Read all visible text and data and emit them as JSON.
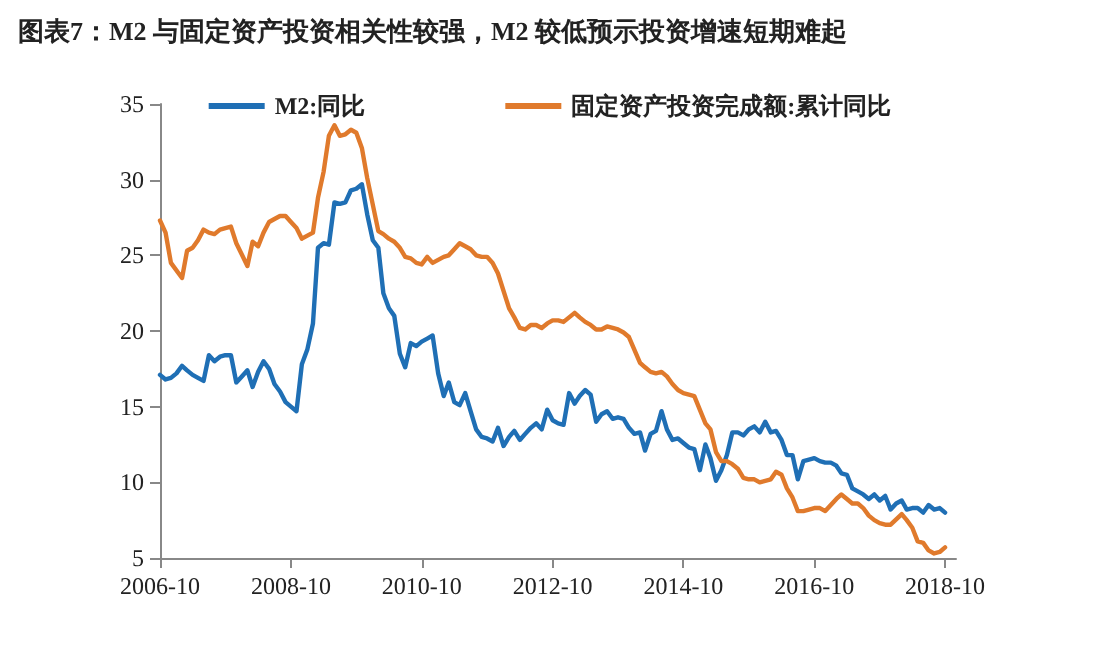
{
  "chart_data": {
    "type": "line",
    "title": "图表7：M2 与固定资产投资相关性较强，M2 较低预示投资增速短期难起",
    "x": [
      "2006-10",
      "2006-11",
      "2006-12",
      "2007-01",
      "2007-02",
      "2007-03",
      "2007-04",
      "2007-05",
      "2007-06",
      "2007-07",
      "2007-08",
      "2007-09",
      "2007-10",
      "2007-11",
      "2007-12",
      "2008-01",
      "2008-02",
      "2008-03",
      "2008-04",
      "2008-05",
      "2008-06",
      "2008-07",
      "2008-08",
      "2008-09",
      "2008-10",
      "2008-11",
      "2008-12",
      "2009-01",
      "2009-02",
      "2009-03",
      "2009-04",
      "2009-05",
      "2009-06",
      "2009-07",
      "2009-08",
      "2009-09",
      "2009-10",
      "2009-11",
      "2009-12",
      "2010-01",
      "2010-02",
      "2010-03",
      "2010-04",
      "2010-05",
      "2010-06",
      "2010-07",
      "2010-08",
      "2010-09",
      "2010-10",
      "2010-11",
      "2010-12",
      "2011-01",
      "2011-02",
      "2011-03",
      "2011-04",
      "2011-05",
      "2011-06",
      "2011-07",
      "2011-08",
      "2011-09",
      "2011-10",
      "2011-11",
      "2011-12",
      "2012-01",
      "2012-02",
      "2012-03",
      "2012-04",
      "2012-05",
      "2012-06",
      "2012-07",
      "2012-08",
      "2012-09",
      "2012-10",
      "2012-11",
      "2012-12",
      "2013-01",
      "2013-02",
      "2013-03",
      "2013-04",
      "2013-05",
      "2013-06",
      "2013-07",
      "2013-08",
      "2013-09",
      "2013-10",
      "2013-11",
      "2013-12",
      "2014-01",
      "2014-02",
      "2014-03",
      "2014-04",
      "2014-05",
      "2014-06",
      "2014-07",
      "2014-08",
      "2014-09",
      "2014-10",
      "2014-11",
      "2014-12",
      "2015-01",
      "2015-02",
      "2015-03",
      "2015-04",
      "2015-05",
      "2015-06",
      "2015-07",
      "2015-08",
      "2015-09",
      "2015-10",
      "2015-11",
      "2015-12",
      "2016-01",
      "2016-02",
      "2016-03",
      "2016-04",
      "2016-05",
      "2016-06",
      "2016-07",
      "2016-08",
      "2016-09",
      "2016-10",
      "2016-11",
      "2016-12",
      "2017-01",
      "2017-02",
      "2017-03",
      "2017-04",
      "2017-05",
      "2017-06",
      "2017-07",
      "2017-08",
      "2017-09",
      "2017-10",
      "2017-11",
      "2017-12",
      "2018-01",
      "2018-02",
      "2018-03",
      "2018-04",
      "2018-05",
      "2018-06",
      "2018-07",
      "2018-08",
      "2018-09",
      "2018-10"
    ],
    "series": [
      {
        "name": "M2:同比",
        "color": "#1f6fb5",
        "values": [
          17.1,
          16.8,
          16.9,
          17.2,
          17.7,
          17.4,
          17.1,
          16.9,
          16.7,
          18.4,
          18.0,
          18.3,
          18.4,
          18.4,
          16.6,
          17.0,
          17.4,
          16.3,
          17.3,
          18.0,
          17.5,
          16.5,
          16.0,
          15.3,
          15.0,
          14.7,
          17.8,
          18.8,
          20.5,
          25.5,
          25.8,
          25.7,
          28.5,
          28.4,
          28.5,
          29.3,
          29.4,
          29.7,
          27.7,
          26.0,
          25.5,
          22.5,
          21.5,
          21.0,
          18.5,
          17.6,
          19.2,
          19.0,
          19.3,
          19.5,
          19.7,
          17.2,
          15.7,
          16.6,
          15.3,
          15.1,
          15.9,
          14.7,
          13.5,
          13.0,
          12.9,
          12.7,
          13.6,
          12.4,
          13.0,
          13.4,
          12.8,
          13.2,
          13.6,
          13.9,
          13.5,
          14.8,
          14.1,
          13.9,
          13.8,
          15.9,
          15.2,
          15.7,
          16.1,
          15.8,
          14.0,
          14.5,
          14.7,
          14.2,
          14.3,
          14.2,
          13.6,
          13.2,
          13.3,
          12.1,
          13.2,
          13.4,
          14.7,
          13.5,
          12.8,
          12.9,
          12.6,
          12.3,
          12.2,
          10.8,
          12.5,
          11.6,
          10.1,
          10.8,
          11.8,
          13.3,
          13.3,
          13.1,
          13.5,
          13.7,
          13.3,
          14.0,
          13.3,
          13.4,
          12.8,
          11.8,
          11.8,
          10.2,
          11.4,
          11.5,
          11.6,
          11.4,
          11.3,
          11.3,
          11.1,
          10.6,
          10.5,
          9.6,
          9.4,
          9.2,
          8.9,
          9.2,
          8.8,
          9.1,
          8.2,
          8.6,
          8.8,
          8.2,
          8.3,
          8.3,
          8.0,
          8.5,
          8.2,
          8.3,
          8.0
        ]
      },
      {
        "name": "固定资产投资完成额:累计同比",
        "color": "#e07a2c",
        "values": [
          27.3,
          26.5,
          24.5,
          null,
          23.5,
          25.3,
          25.5,
          26.0,
          26.7,
          26.5,
          26.4,
          26.7,
          26.8,
          26.9,
          25.8,
          null,
          24.3,
          25.9,
          25.6,
          26.5,
          27.2,
          27.4,
          27.6,
          27.6,
          27.2,
          26.8,
          26.1,
          null,
          26.5,
          28.8,
          30.5,
          32.9,
          33.6,
          32.9,
          33.0,
          33.3,
          33.1,
          32.1,
          30.1,
          null,
          26.6,
          26.4,
          26.1,
          25.9,
          25.5,
          24.9,
          24.8,
          24.5,
          24.4,
          24.9,
          24.5,
          null,
          24.9,
          25.0,
          25.4,
          25.8,
          25.6,
          25.4,
          25.0,
          24.9,
          24.9,
          24.5,
          23.8,
          null,
          21.5,
          20.9,
          20.2,
          20.1,
          20.4,
          20.4,
          20.2,
          20.5,
          20.7,
          20.7,
          20.6,
          null,
          21.2,
          20.9,
          20.6,
          20.4,
          20.1,
          20.1,
          20.3,
          20.2,
          20.1,
          19.9,
          19.6,
          null,
          17.9,
          17.6,
          17.3,
          17.2,
          17.3,
          17.0,
          16.5,
          16.1,
          15.9,
          15.8,
          15.7,
          null,
          13.9,
          13.5,
          12.0,
          11.4,
          11.4,
          11.2,
          10.9,
          10.3,
          10.2,
          10.2,
          10.0,
          null,
          10.2,
          10.7,
          10.5,
          9.6,
          9.0,
          8.1,
          8.1,
          8.2,
          8.3,
          8.3,
          8.1,
          null,
          8.9,
          9.2,
          8.9,
          8.6,
          8.6,
          8.3,
          7.8,
          7.5,
          7.3,
          7.2,
          7.2,
          null,
          7.9,
          7.5,
          7.0,
          6.1,
          6.0,
          5.5,
          5.3,
          5.4,
          5.7
        ]
      }
    ],
    "xlim": [
      "2006-10",
      "2018-12"
    ],
    "xticks": [
      "2006-10",
      "2008-10",
      "2010-10",
      "2012-10",
      "2014-10",
      "2016-10",
      "2018-10"
    ],
    "ylim": [
      5,
      35
    ],
    "yticks": [
      5,
      10,
      15,
      20,
      25,
      30,
      35
    ],
    "grid": false,
    "legend": "top",
    "marker": "none",
    "line_style": "solid"
  }
}
